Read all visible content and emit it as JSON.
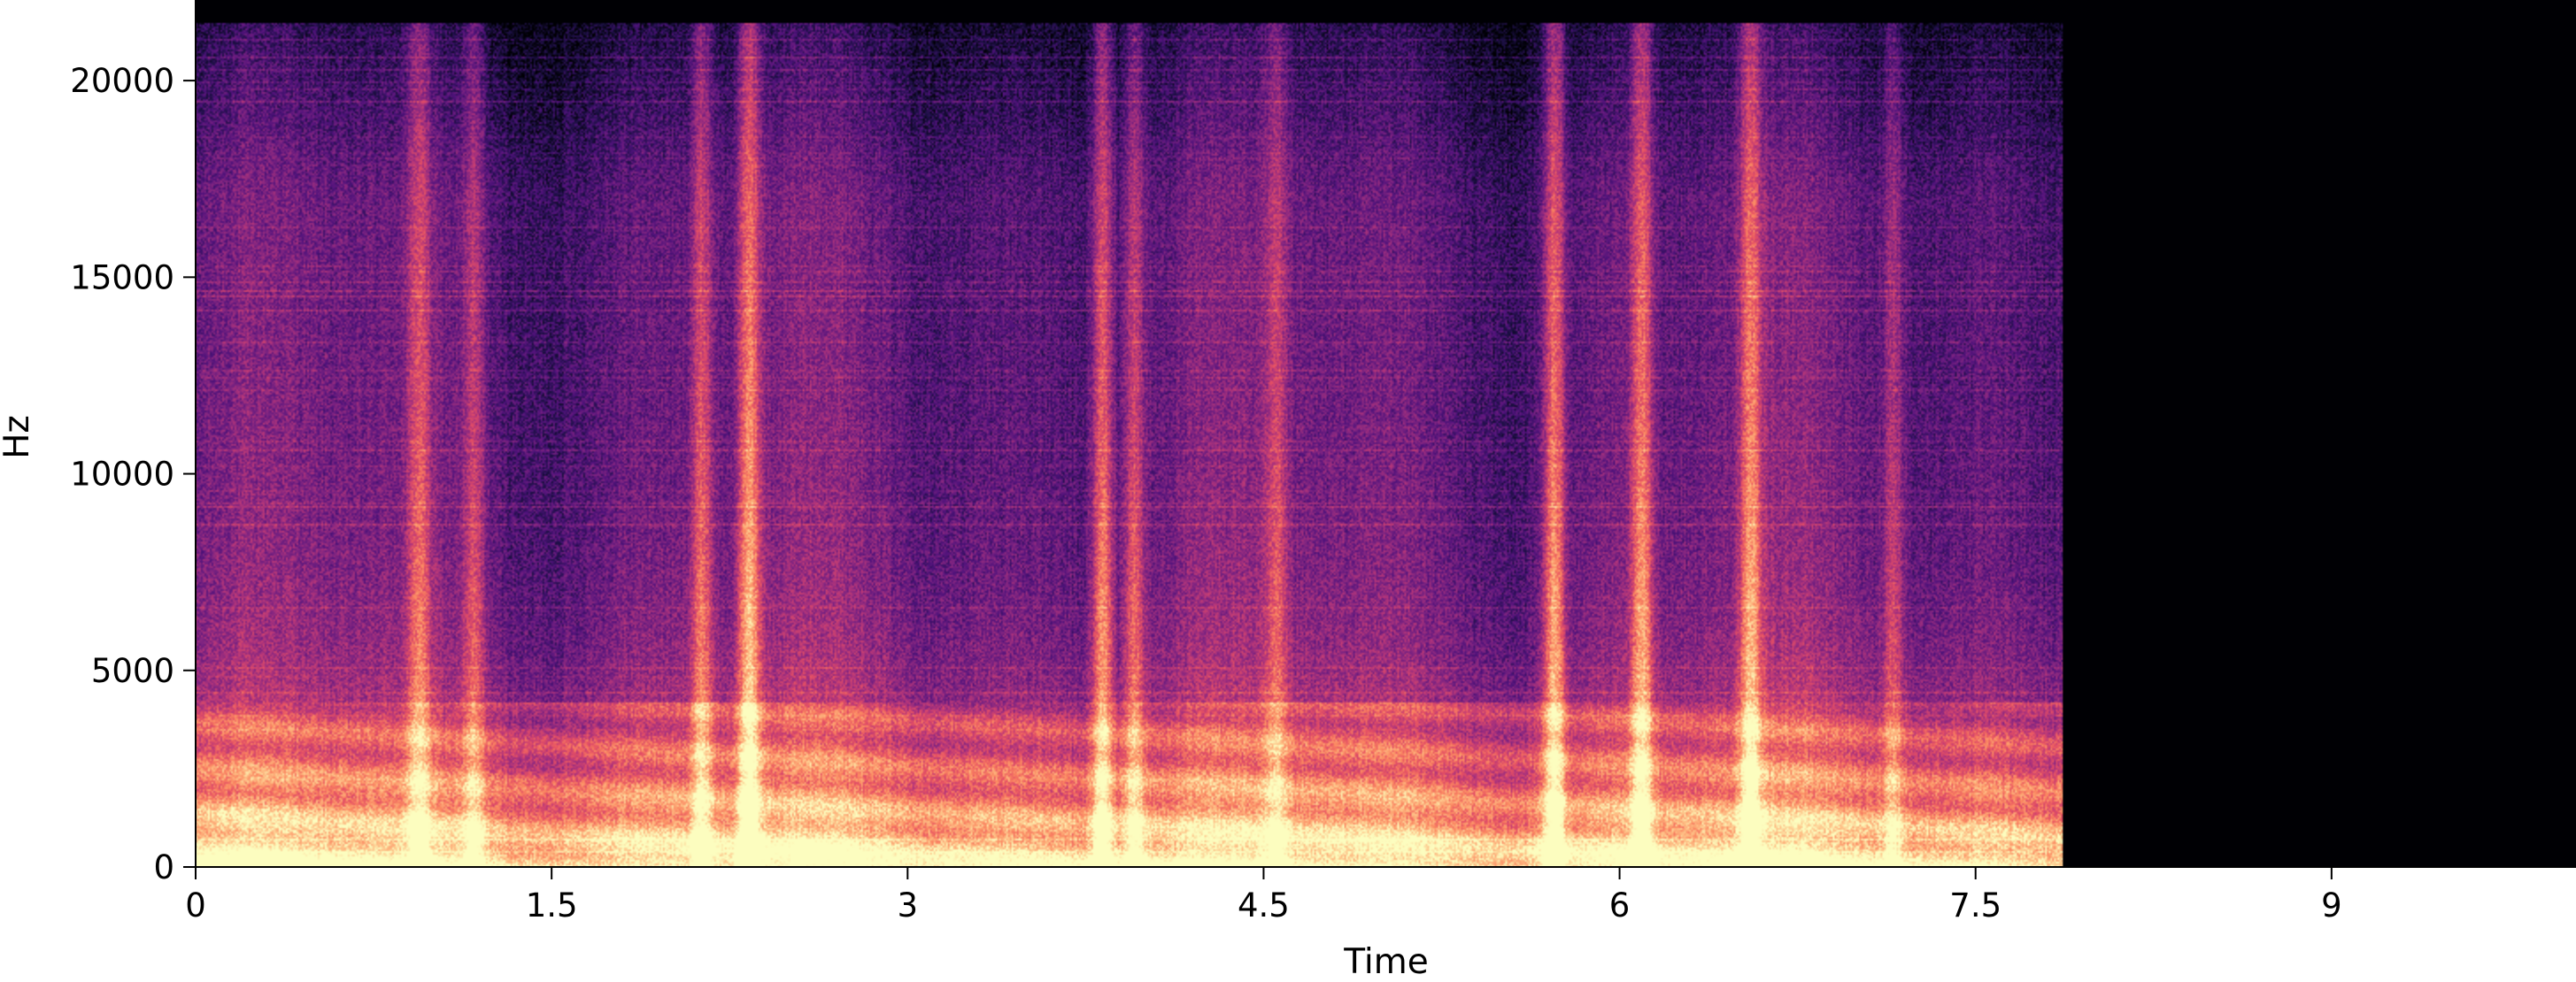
{
  "chart_data": {
    "type": "heatmap",
    "title": "",
    "xlabel": "Time",
    "ylabel": "Hz",
    "xlim": [
      0,
      10.03
    ],
    "ylim": [
      0,
      22050
    ],
    "x_ticks": [
      0,
      1.5,
      3,
      4.5,
      6,
      7.5,
      9
    ],
    "x_tick_labels": [
      "0",
      "1.5",
      "3",
      "4.5",
      "6",
      "7.5",
      "9"
    ],
    "y_ticks": [
      0,
      5000,
      10000,
      15000,
      20000
    ],
    "y_tick_labels": [
      "0",
      "5000",
      "10000",
      "15000",
      "20000"
    ],
    "colormap": "magma",
    "audio_end_time": 7.86,
    "colors": {
      "background": "#000000",
      "low": "#000004",
      "high": "#fcfdbf"
    },
    "bright_onsets": [
      {
        "time": 0.94,
        "strength": 0.55
      },
      {
        "time": 1.17,
        "strength": 0.45
      },
      {
        "time": 2.13,
        "strength": 0.6
      },
      {
        "time": 2.33,
        "strength": 0.85
      },
      {
        "time": 3.82,
        "strength": 0.8
      },
      {
        "time": 3.95,
        "strength": 0.6
      },
      {
        "time": 4.55,
        "strength": 0.4
      },
      {
        "time": 5.72,
        "strength": 0.85
      },
      {
        "time": 6.09,
        "strength": 0.75
      },
      {
        "time": 6.55,
        "strength": 0.7
      },
      {
        "time": 7.15,
        "strength": 0.45
      }
    ]
  }
}
